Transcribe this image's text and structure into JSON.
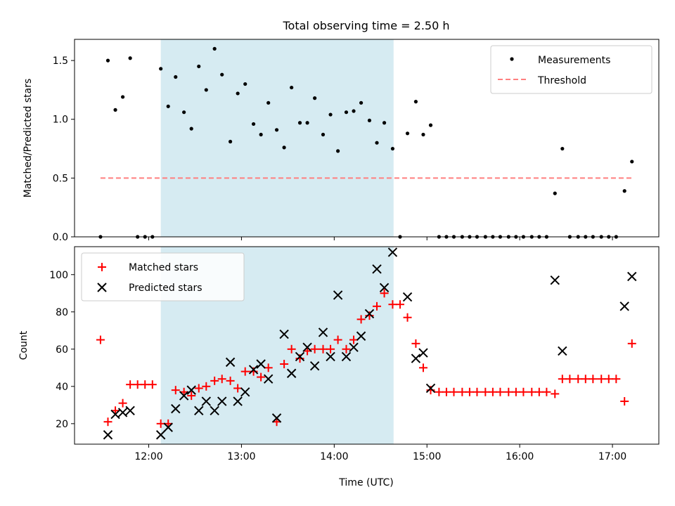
{
  "figure_title": "Total observing time = 2.50 h",
  "chart_data": [
    {
      "type": "scatter",
      "title": "Total observing time = 2.50 h",
      "xlabel": "",
      "ylabel": "Matched/Predicted stars",
      "xlim": [
        11.2,
        17.5
      ],
      "ylim": [
        0,
        1.68
      ],
      "x_ticks": [
        12,
        13,
        14,
        15,
        16,
        17
      ],
      "x_tick_labels": [
        "",
        "",
        "",
        "",
        "",
        ""
      ],
      "y_ticks": [
        0,
        0.5,
        1.0,
        1.5
      ],
      "y_tick_labels": [
        "0.0",
        "0.5",
        "1.0",
        "1.5"
      ],
      "shaded_span": [
        12.13,
        14.64
      ],
      "shade_color": "#add8e6",
      "legend": {
        "placement": "top-right",
        "entries": [
          "Measurements",
          "Threshold"
        ]
      },
      "series": [
        {
          "name": "Measurements",
          "marker": "dot",
          "color": "#000000",
          "x": [
            11.48,
            11.56,
            11.64,
            11.72,
            11.8,
            11.88,
            11.96,
            12.04,
            12.13,
            12.21,
            12.29,
            12.38,
            12.46,
            12.54,
            12.62,
            12.71,
            12.79,
            12.88,
            12.96,
            13.04,
            13.13,
            13.21,
            13.29,
            13.38,
            13.46,
            13.54,
            13.63,
            13.71,
            13.79,
            13.88,
            13.96,
            14.04,
            14.13,
            14.21,
            14.29,
            14.38,
            14.46,
            14.54,
            14.63,
            14.71,
            14.79,
            14.88,
            14.96,
            15.04,
            15.13,
            15.21,
            15.29,
            15.38,
            15.46,
            15.54,
            15.63,
            15.71,
            15.79,
            15.88,
            15.96,
            16.04,
            16.13,
            16.21,
            16.29,
            16.38,
            16.46,
            16.54,
            16.63,
            16.71,
            16.79,
            16.88,
            16.96,
            17.04,
            17.13,
            17.21
          ],
          "y": [
            0.0,
            1.5,
            1.08,
            1.19,
            1.52,
            0.0,
            0.0,
            0.0,
            1.43,
            1.11,
            1.36,
            1.06,
            0.92,
            1.45,
            1.25,
            1.6,
            1.38,
            0.81,
            1.22,
            1.3,
            0.96,
            0.87,
            1.14,
            0.91,
            0.76,
            1.27,
            0.97,
            0.97,
            1.18,
            0.87,
            1.04,
            0.73,
            1.06,
            1.07,
            1.14,
            0.99,
            0.8,
            0.97,
            0.75,
            0.0,
            0.88,
            1.15,
            0.87,
            0.95,
            0.0,
            0.0,
            0.0,
            0.0,
            0.0,
            0.0,
            0.0,
            0.0,
            0.0,
            0.0,
            0.0,
            0.0,
            0.0,
            0.0,
            0.0,
            0.37,
            0.75,
            0.0,
            0.0,
            0.0,
            0.0,
            0.0,
            0.0,
            0.0,
            0.39,
            0.64
          ]
        },
        {
          "name": "Threshold",
          "style": "dashed",
          "color": "#ff7f7f",
          "x": [
            11.48,
            17.21
          ],
          "y": [
            0.5,
            0.5
          ]
        }
      ]
    },
    {
      "type": "scatter",
      "title": "",
      "xlabel": "Time (UTC)",
      "ylabel": "Count",
      "xlim": [
        11.2,
        17.5
      ],
      "ylim": [
        9,
        115
      ],
      "x_ticks": [
        12,
        13,
        14,
        15,
        16,
        17
      ],
      "x_tick_labels": [
        "12:00",
        "13:00",
        "14:00",
        "15:00",
        "16:00",
        "17:00"
      ],
      "y_ticks": [
        20,
        40,
        60,
        80,
        100
      ],
      "y_tick_labels": [
        "20",
        "40",
        "60",
        "80",
        "100"
      ],
      "shaded_span": [
        12.13,
        14.64
      ],
      "shade_color": "#add8e6",
      "legend": {
        "placement": "top-left",
        "entries": [
          "Matched stars",
          "Predicted stars"
        ]
      },
      "series": [
        {
          "name": "Matched stars",
          "marker": "plus",
          "color": "#ff0000",
          "x": [
            11.48,
            11.56,
            11.64,
            11.72,
            11.8,
            11.88,
            11.96,
            12.04,
            12.13,
            12.21,
            12.29,
            12.38,
            12.46,
            12.54,
            12.62,
            12.71,
            12.79,
            12.88,
            12.96,
            13.04,
            13.13,
            13.21,
            13.29,
            13.38,
            13.46,
            13.54,
            13.63,
            13.71,
            13.79,
            13.88,
            13.96,
            14.04,
            14.13,
            14.21,
            14.29,
            14.38,
            14.46,
            14.54,
            14.63,
            14.71,
            14.79,
            14.88,
            14.96,
            15.04,
            15.13,
            15.21,
            15.29,
            15.38,
            15.46,
            15.54,
            15.63,
            15.71,
            15.79,
            15.88,
            15.96,
            16.04,
            16.13,
            16.21,
            16.29,
            16.38,
            16.46,
            16.54,
            16.63,
            16.71,
            16.79,
            16.88,
            16.96,
            17.04,
            17.13,
            17.21
          ],
          "y": [
            65,
            21,
            27,
            31,
            41,
            41,
            41,
            41,
            20,
            20,
            38,
            37,
            35,
            39,
            40,
            43,
            44,
            43,
            39,
            48,
            48,
            45,
            50,
            21,
            52,
            60,
            55,
            59,
            60,
            60,
            60,
            65,
            60,
            65,
            76,
            78,
            83,
            90,
            84,
            84,
            77,
            63,
            50,
            38,
            37,
            37,
            37,
            37,
            37,
            37,
            37,
            37,
            37,
            37,
            37,
            37,
            37,
            37,
            37,
            36,
            44,
            44,
            44,
            44,
            44,
            44,
            44,
            44,
            32,
            63
          ]
        },
        {
          "name": "Predicted stars",
          "marker": "x",
          "color": "#000000",
          "x": [
            11.56,
            11.64,
            11.72,
            11.8,
            12.13,
            12.21,
            12.29,
            12.38,
            12.46,
            12.54,
            12.62,
            12.71,
            12.79,
            12.88,
            12.96,
            13.04,
            13.13,
            13.21,
            13.29,
            13.38,
            13.46,
            13.54,
            13.63,
            13.71,
            13.79,
            13.88,
            13.96,
            14.04,
            14.13,
            14.21,
            14.29,
            14.38,
            14.46,
            14.54,
            14.63,
            14.79,
            14.88,
            14.96,
            15.04,
            16.38,
            16.46,
            17.13,
            17.21
          ],
          "y": [
            14,
            25,
            26,
            27,
            14,
            18,
            28,
            35,
            38,
            27,
            32,
            27,
            32,
            53,
            32,
            37,
            49,
            52,
            44,
            23,
            68,
            47,
            56,
            61,
            51,
            69,
            56,
            89,
            56,
            61,
            67,
            79,
            103,
            93,
            112,
            88,
            55,
            58,
            39,
            97,
            59,
            83,
            99
          ]
        }
      ]
    }
  ]
}
